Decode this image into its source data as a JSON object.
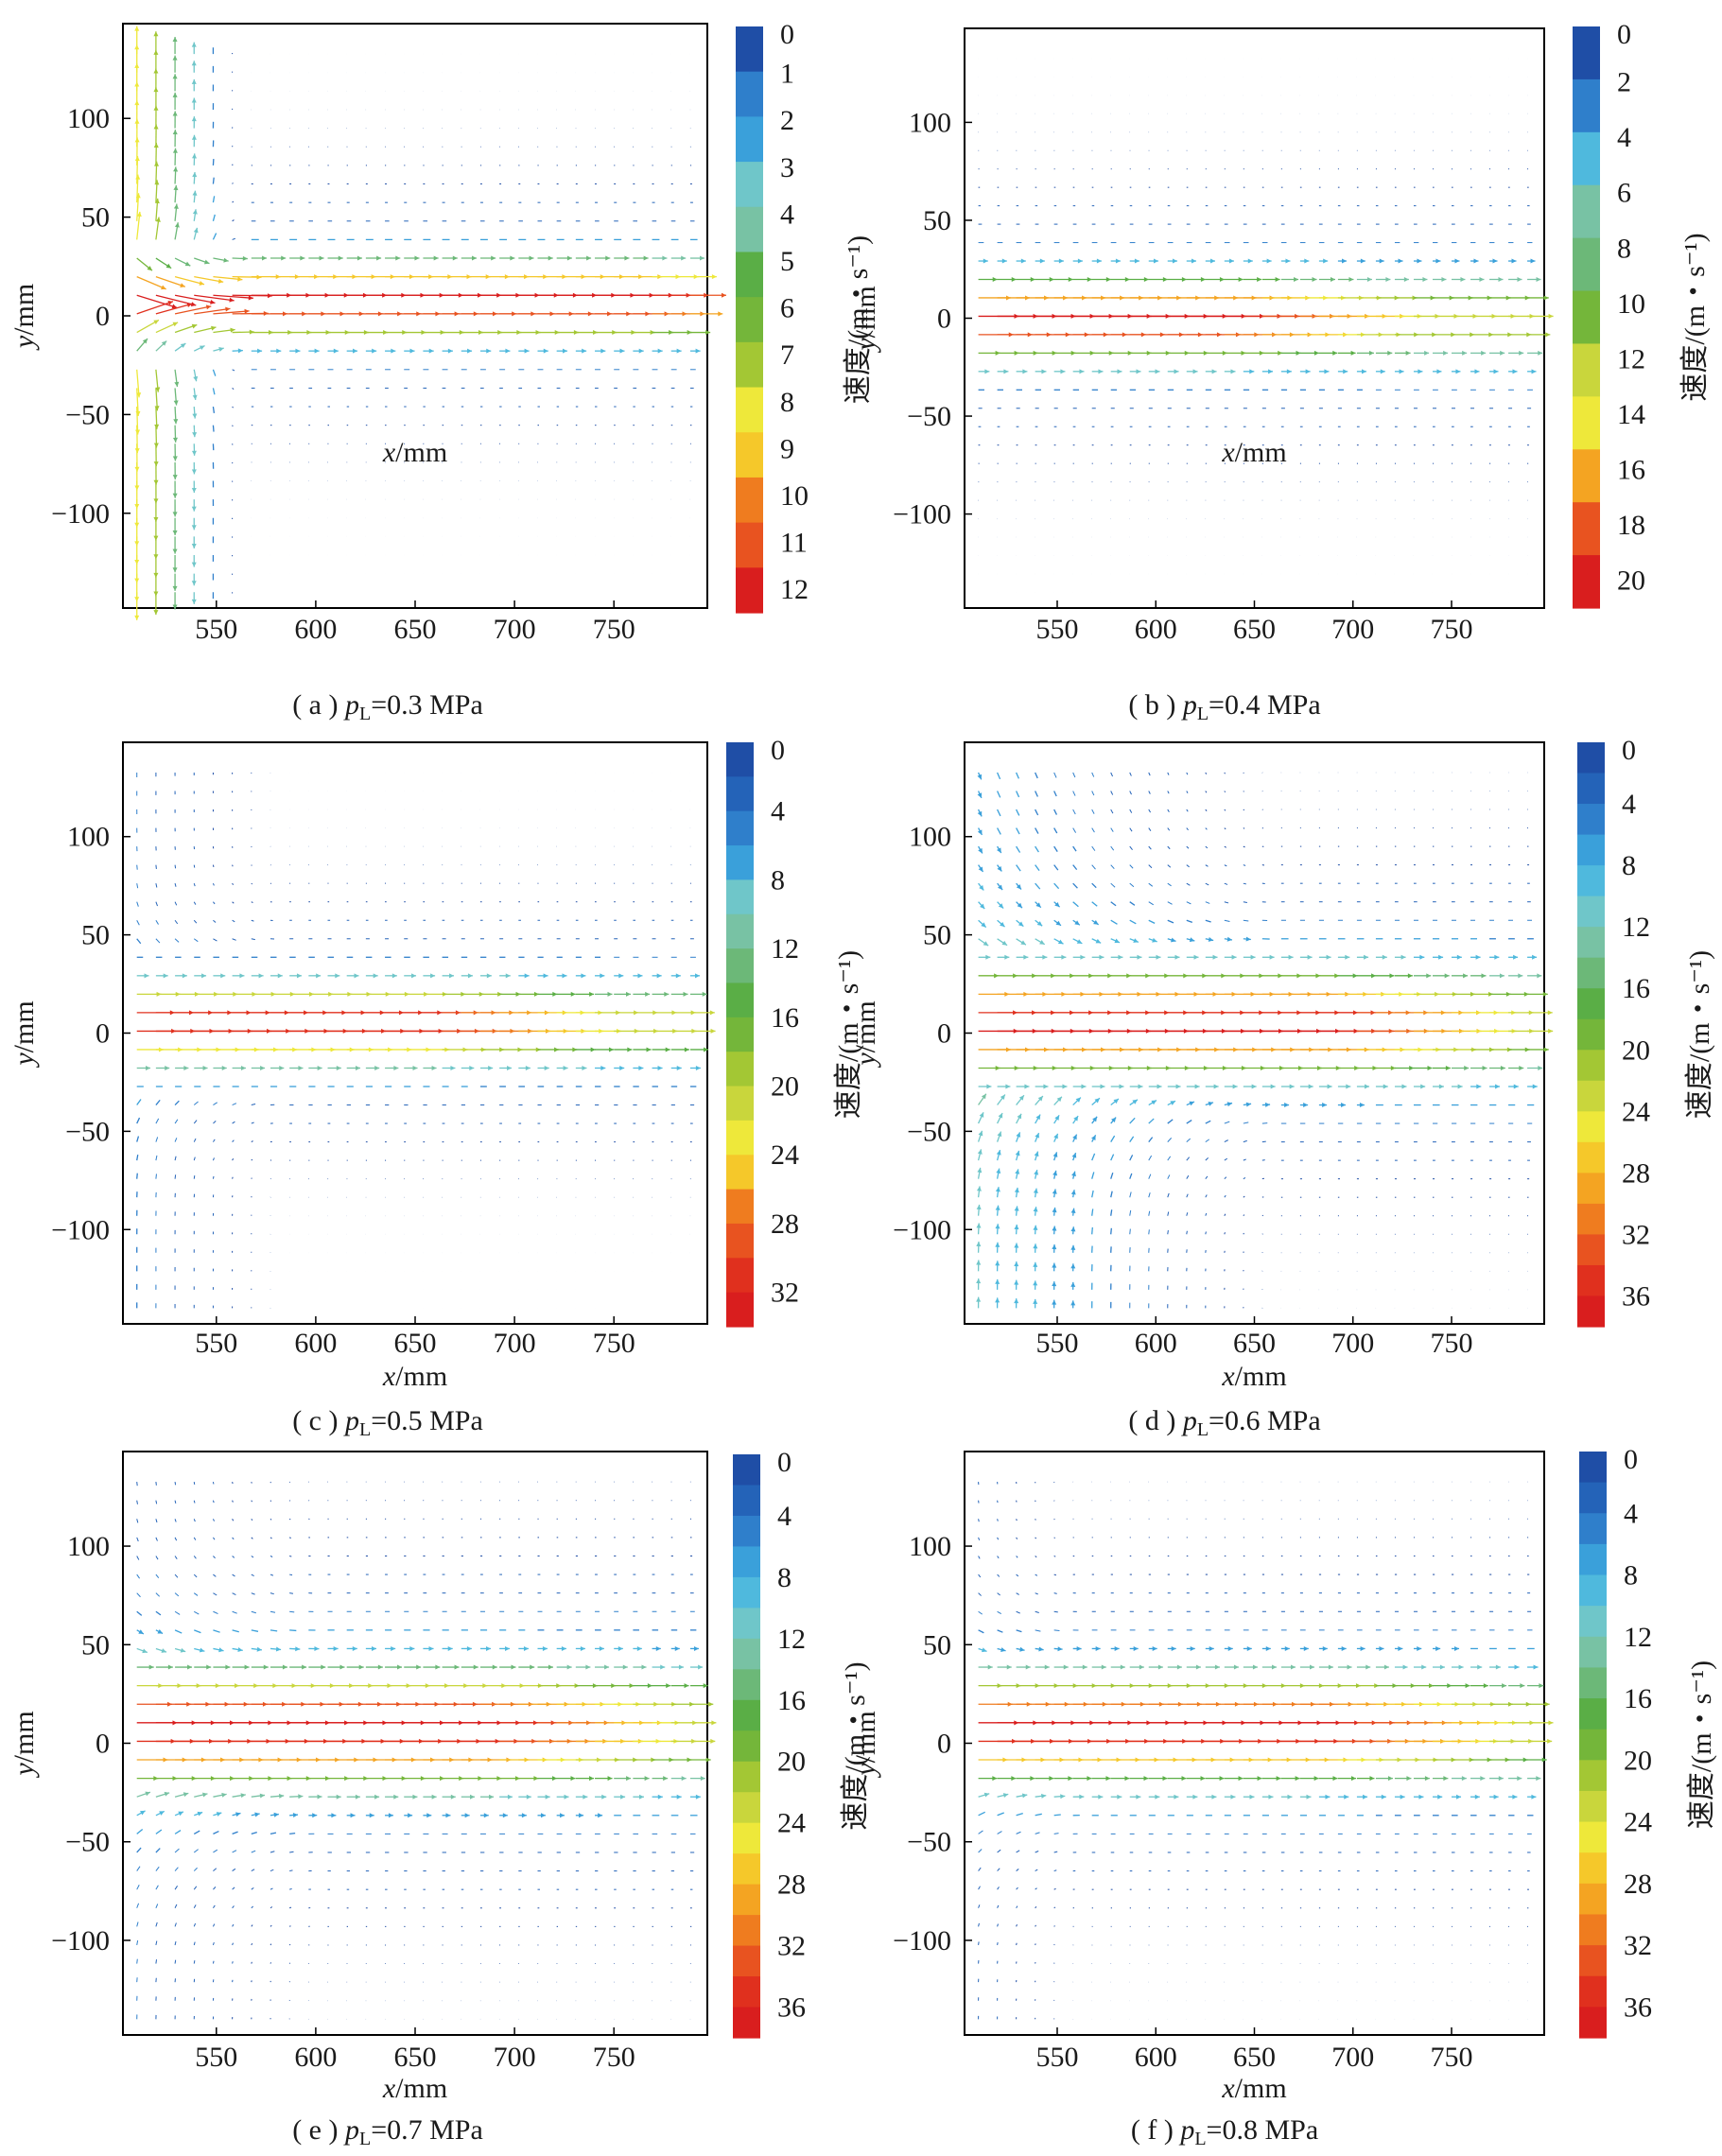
{
  "figure": {
    "panels": [
      {
        "caption_prefix": "( a ) ",
        "caption_p": "p",
        "caption_sub": "L",
        "caption_suffix": "=0.3 MPa"
      },
      {
        "caption_prefix": "( b ) ",
        "caption_p": "p",
        "caption_sub": "L",
        "caption_suffix": "=0.4 MPa"
      },
      {
        "caption_prefix": "( c ) ",
        "caption_p": "p",
        "caption_sub": "L",
        "caption_suffix": "=0.5 MPa"
      },
      {
        "caption_prefix": "( d ) ",
        "caption_p": "p",
        "caption_sub": "L",
        "caption_suffix": "=0.6 MPa"
      },
      {
        "caption_prefix": "( e ) ",
        "caption_p": "p",
        "caption_sub": "L",
        "caption_suffix": "=0.7 MPa"
      },
      {
        "caption_prefix": "( f ) ",
        "caption_p": "p",
        "caption_sub": "L",
        "caption_suffix": "=0.8 MPa"
      }
    ]
  },
  "chart_data": [
    {
      "type": "quiver",
      "xlabel_var": "x",
      "xlabel_unit": "/mm",
      "ylabel_var": "y",
      "ylabel_unit": "/mm",
      "xlim": [
        503,
        797
      ],
      "ylim": [
        -148,
        148
      ],
      "xticks": [
        550,
        600,
        650,
        700,
        750
      ],
      "yticks": [
        100,
        50,
        0,
        -50,
        -100
      ],
      "colorbar": {
        "title": "速度/(m・s⁻¹)",
        "vmin": 0,
        "vmax": 12.5,
        "labels": [
          0,
          1,
          2,
          3,
          4,
          5,
          6,
          7,
          8,
          9,
          10,
          11,
          12
        ],
        "levels": 13
      },
      "jet": {
        "vmax": 12,
        "y0": 8,
        "half_width": 13,
        "x_core_end": 760
      },
      "entrainment": {
        "type": "vertical",
        "x_max": 560,
        "strength": 0.85
      }
    },
    {
      "type": "quiver",
      "xlabel_var": "x",
      "xlabel_unit": "/mm",
      "ylabel_var": "y",
      "ylabel_unit": "/mm",
      "xlim": [
        503,
        797
      ],
      "ylim": [
        -148,
        148
      ],
      "xticks": [
        550,
        600,
        650,
        700,
        750
      ],
      "yticks": [
        100,
        50,
        0,
        -50,
        -100
      ],
      "colorbar": {
        "title": "速度/(m・s⁻¹)",
        "vmin": 0,
        "vmax": 21,
        "labels": [
          0,
          2,
          4,
          6,
          8,
          10,
          12,
          14,
          16,
          18,
          20
        ],
        "levels": 11
      },
      "jet": {
        "vmax": 20,
        "y0": 0,
        "half_width": 14,
        "x_core_end": 630
      },
      "entrainment": {
        "type": "none",
        "x_max": 0,
        "strength": 0
      }
    },
    {
      "type": "quiver",
      "xlabel_var": "x",
      "xlabel_unit": "/mm",
      "ylabel_var": "y",
      "ylabel_unit": "/mm",
      "xlim": [
        503,
        797
      ],
      "ylim": [
        -148,
        148
      ],
      "xticks": [
        550,
        600,
        650,
        700,
        750
      ],
      "yticks": [
        100,
        50,
        0,
        -50,
        -100
      ],
      "colorbar": {
        "title": "速度/(m・s⁻¹)",
        "vmin": 0,
        "vmax": 34,
        "labels": [
          0,
          4,
          8,
          12,
          16,
          20,
          24,
          28,
          32
        ],
        "levels": 17
      },
      "jet": {
        "vmax": 33,
        "y0": 5,
        "half_width": 13,
        "x_core_end": 650
      },
      "entrainment": {
        "type": "top-left",
        "x_max": 580,
        "strength": 0.25
      }
    },
    {
      "type": "quiver",
      "xlabel_var": "x",
      "xlabel_unit": "/mm",
      "ylabel_var": "y",
      "ylabel_unit": "/mm",
      "xlim": [
        503,
        797
      ],
      "ylim": [
        -148,
        148
      ],
      "xticks": [
        550,
        600,
        650,
        700,
        750
      ],
      "yticks": [
        100,
        50,
        0,
        -50,
        -100
      ],
      "colorbar": {
        "title": "速度/(m・s⁻¹)",
        "vmin": 0,
        "vmax": 38,
        "labels": [
          0,
          4,
          8,
          12,
          16,
          20,
          24,
          28,
          32,
          36
        ],
        "levels": 19
      },
      "jet": {
        "vmax": 37,
        "y0": 5,
        "half_width": 18,
        "x_core_end": 680
      },
      "entrainment": {
        "type": "both-left",
        "x_max": 660,
        "strength": 0.35
      }
    },
    {
      "type": "quiver",
      "xlabel_var": "x",
      "xlabel_unit": "/mm",
      "ylabel_var": "y",
      "ylabel_unit": "/mm",
      "xlim": [
        503,
        797
      ],
      "ylim": [
        -148,
        148
      ],
      "xticks": [
        550,
        600,
        650,
        700,
        750
      ],
      "yticks": [
        100,
        50,
        0,
        -50,
        -100
      ],
      "colorbar": {
        "title": "速度/(m・s⁻¹)",
        "vmin": 0,
        "vmax": 38,
        "labels": [
          0,
          4,
          8,
          12,
          16,
          20,
          24,
          28,
          32,
          36
        ],
        "levels": 19
      },
      "jet": {
        "vmax": 37,
        "y0": 8,
        "half_width": 20,
        "x_core_end": 680
      },
      "entrainment": {
        "type": "top-left",
        "x_max": 600,
        "strength": 0.2
      }
    },
    {
      "type": "quiver",
      "xlabel_var": "x",
      "xlabel_unit": "/mm",
      "ylabel_var": "y",
      "ylabel_unit": "/mm",
      "xlim": [
        503,
        797
      ],
      "ylim": [
        -148,
        148
      ],
      "xticks": [
        550,
        600,
        650,
        700,
        750
      ],
      "yticks": [
        100,
        50,
        0,
        -50,
        -100
      ],
      "colorbar": {
        "title": "速度/(m・s⁻¹)",
        "vmin": 0,
        "vmax": 38,
        "labels": [
          0,
          4,
          8,
          12,
          16,
          20,
          24,
          28,
          32,
          36
        ],
        "levels": 19
      },
      "jet": {
        "vmax": 37,
        "y0": 8,
        "half_width": 18,
        "x_core_end": 680
      },
      "entrainment": {
        "type": "top-left",
        "x_max": 560,
        "strength": 0.15
      }
    }
  ]
}
